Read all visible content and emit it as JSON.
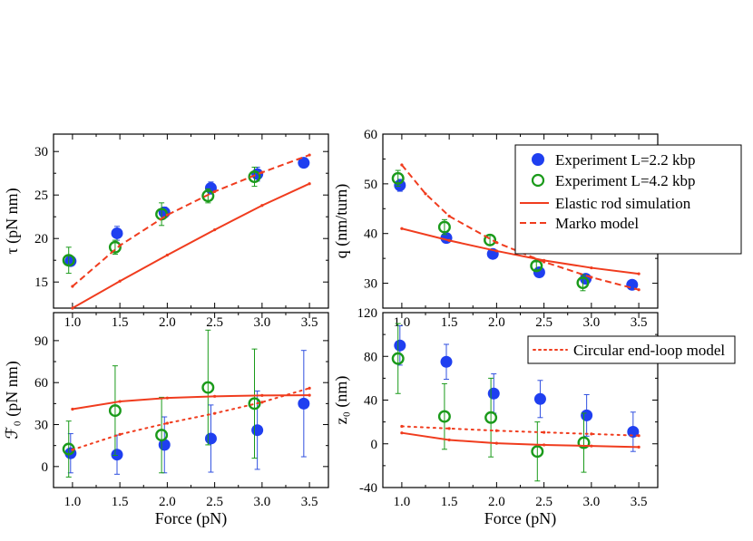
{
  "figure": {
    "xlabel": "Force (pN)",
    "legend_top": [
      {
        "label": "Experiment L=2.2 kbp",
        "kind": "filled"
      },
      {
        "label": "Experiment L=4.2 kbp",
        "kind": "open"
      },
      {
        "label": "Elastic rod simulation",
        "kind": "solid"
      },
      {
        "label": "Marko model",
        "kind": "dashed"
      }
    ],
    "legend_bottom": [
      {
        "label": "Circular end-loop model",
        "kind": "dotted"
      }
    ]
  },
  "colors": {
    "blue": "#1f3ff0",
    "green": "#1a9a1a",
    "red": "#f03c1e",
    "errblue": "#3050e0"
  },
  "chart_data": [
    {
      "type": "scatter",
      "id": "tau",
      "ylabel": "τ (pN nm)",
      "xlim": [
        0.8,
        3.7
      ],
      "ylim": [
        12,
        32
      ],
      "xticks": [
        1.0,
        1.5,
        2.0,
        2.5,
        3.0,
        3.5
      ],
      "yticks": [
        15,
        20,
        25,
        30
      ],
      "xticklabels": [
        "1.0",
        "1.5",
        "2.0",
        "2.5",
        "3.0",
        "3.5"
      ],
      "yticklabels": [
        "15",
        "20",
        "25",
        "30"
      ],
      "show_xlabel": false,
      "series": [
        {
          "name": "Experiment L=2.2 kbp",
          "style": "filled",
          "x": [
            0.98,
            1.47,
            1.97,
            2.46,
            2.95,
            3.44
          ],
          "y": [
            17.4,
            20.6,
            23.0,
            25.8,
            27.4,
            28.7
          ],
          "err": [
            0.5,
            0.8,
            0.6,
            0.7,
            0.8,
            0.5
          ]
        },
        {
          "name": "Experiment L=4.2 kbp",
          "style": "open",
          "x": [
            0.96,
            1.45,
            1.94,
            2.43,
            2.92
          ],
          "y": [
            17.5,
            19.0,
            22.8,
            24.9,
            27.1
          ],
          "err": [
            1.5,
            0.8,
            1.3,
            0.8,
            1.1
          ]
        },
        {
          "name": "Elastic rod simulation",
          "style": "solid",
          "x": [
            1.0,
            1.5,
            2.0,
            2.5,
            3.0,
            3.5
          ],
          "y": [
            12.0,
            15.1,
            18.1,
            21.0,
            23.8,
            26.3
          ]
        },
        {
          "name": "Marko model",
          "style": "dashed",
          "x": [
            1.0,
            1.5,
            2.0,
            2.5,
            3.0,
            3.5
          ],
          "y": [
            14.5,
            19.2,
            22.7,
            25.4,
            27.6,
            29.6
          ]
        }
      ]
    },
    {
      "type": "scatter",
      "id": "q",
      "ylabel": "q (nm/turn)",
      "xlim": [
        0.8,
        3.7
      ],
      "ylim": [
        25,
        60
      ],
      "xticks": [
        1.0,
        1.5,
        2.0,
        2.5,
        3.0,
        3.5
      ],
      "yticks": [
        30,
        40,
        50,
        60
      ],
      "xticklabels": [
        "1.0",
        "1.5",
        "2.0",
        "2.5",
        "3.0",
        "3.5"
      ],
      "yticklabels": [
        "30",
        "40",
        "50",
        "60"
      ],
      "show_xlabel": false,
      "series": [
        {
          "name": "Experiment L=2.2 kbp",
          "style": "filled",
          "x": [
            0.98,
            1.47,
            1.96,
            2.45,
            2.94,
            3.43
          ],
          "y": [
            49.7,
            39.1,
            35.9,
            32.2,
            30.9,
            29.7
          ],
          "err": [
            1.2,
            0.8,
            0.6,
            0.6,
            0.5,
            0.5
          ]
        },
        {
          "name": "Experiment L=4.2 kbp",
          "style": "open",
          "x": [
            0.96,
            1.45,
            1.93,
            2.42,
            2.91
          ],
          "y": [
            51.1,
            41.3,
            38.7,
            33.5,
            30.1
          ],
          "err": [
            1.6,
            1.5,
            1.0,
            0.8,
            1.6
          ]
        },
        {
          "name": "Elastic rod simulation",
          "style": "solid",
          "x": [
            1.0,
            1.5,
            2.0,
            2.5,
            3.0,
            3.5
          ],
          "y": [
            41.0,
            38.6,
            36.5,
            34.6,
            33.1,
            31.9
          ]
        },
        {
          "name": "Marko model",
          "style": "dashed",
          "x": [
            1.0,
            1.25,
            1.5,
            2.0,
            2.5,
            3.0,
            3.5
          ],
          "y": [
            53.8,
            48.0,
            43.5,
            38.2,
            34.3,
            31.2,
            28.7
          ]
        }
      ]
    },
    {
      "type": "scatter",
      "id": "F0",
      "ylabel": "ℱ₀ (pN nm)",
      "xlim": [
        0.8,
        3.7
      ],
      "ylim": [
        -15,
        110
      ],
      "xticks": [
        1.0,
        1.5,
        2.0,
        2.5,
        3.0,
        3.5
      ],
      "yticks": [
        0,
        30,
        60,
        90
      ],
      "xticklabels": [
        "1.0",
        "1.5",
        "2.0",
        "2.5",
        "3.0",
        "3.5"
      ],
      "yticklabels": [
        "0",
        "30",
        "60",
        "90"
      ],
      "show_xlabel": true,
      "series": [
        {
          "name": "Experiment L=2.2 kbp",
          "style": "filled",
          "x": [
            0.98,
            1.47,
            1.97,
            2.46,
            2.95,
            3.44
          ],
          "y": [
            9.5,
            8.5,
            15.5,
            20.0,
            26.0,
            45.0
          ],
          "err": [
            14,
            14,
            20,
            24,
            28,
            38
          ]
        },
        {
          "name": "Experiment L=4.2 kbp",
          "style": "open",
          "x": [
            0.96,
            1.45,
            1.94,
            2.43,
            2.92
          ],
          "y": [
            12.5,
            40.0,
            22.5,
            56.5,
            45.0
          ],
          "err": [
            20,
            32,
            27,
            41,
            39
          ]
        },
        {
          "name": "Elastic rod simulation",
          "style": "solid",
          "x": [
            1.0,
            1.5,
            2.0,
            2.5,
            3.0,
            3.5
          ],
          "y": [
            41.0,
            46.5,
            49.0,
            50.2,
            50.8,
            51.0
          ]
        },
        {
          "name": "Circular end-loop model",
          "style": "dotted",
          "x": [
            1.0,
            1.5,
            2.0,
            2.5,
            3.0,
            3.5
          ],
          "y": [
            12.0,
            23.0,
            31.0,
            38.0,
            46.0,
            56.0
          ]
        }
      ]
    },
    {
      "type": "scatter",
      "id": "z0",
      "ylabel": "z₀ (nm)",
      "xlim": [
        0.8,
        3.7
      ],
      "ylim": [
        -40,
        120
      ],
      "xticks": [
        1.0,
        1.5,
        2.0,
        2.5,
        3.0,
        3.5
      ],
      "yticks": [
        -40,
        0,
        40,
        80,
        120
      ],
      "xticklabels": [
        "1.0",
        "1.5",
        "2.0",
        "2.5",
        "3.0",
        "3.5"
      ],
      "yticklabels": [
        "-40",
        "0",
        "40",
        "80",
        "120"
      ],
      "show_xlabel": true,
      "series": [
        {
          "name": "Experiment L=2.2 kbp",
          "style": "filled",
          "x": [
            0.98,
            1.47,
            1.97,
            2.46,
            2.95,
            3.44
          ],
          "y": [
            90.0,
            75.0,
            46.0,
            41.0,
            26.0,
            11.0
          ],
          "err": [
            18,
            16,
            18,
            17,
            19,
            18
          ]
        },
        {
          "name": "Experiment L=4.2 kbp",
          "style": "open",
          "x": [
            0.96,
            1.45,
            1.94,
            2.43,
            2.92
          ],
          "y": [
            78.0,
            25.0,
            24.0,
            -7.0,
            1.0
          ],
          "err": [
            32,
            30,
            36,
            27,
            27
          ]
        },
        {
          "name": "Elastic rod simulation",
          "style": "solid",
          "x": [
            1.0,
            1.5,
            2.0,
            2.5,
            3.0,
            3.5
          ],
          "y": [
            10.0,
            3.5,
            0.5,
            -1.0,
            -2.0,
            -3.0
          ]
        },
        {
          "name": "Circular end-loop model",
          "style": "dotted",
          "x": [
            1.0,
            1.5,
            2.0,
            2.5,
            3.0,
            3.5
          ],
          "y": [
            16.0,
            14.0,
            12.0,
            10.5,
            9.0,
            7.5
          ]
        }
      ]
    }
  ]
}
